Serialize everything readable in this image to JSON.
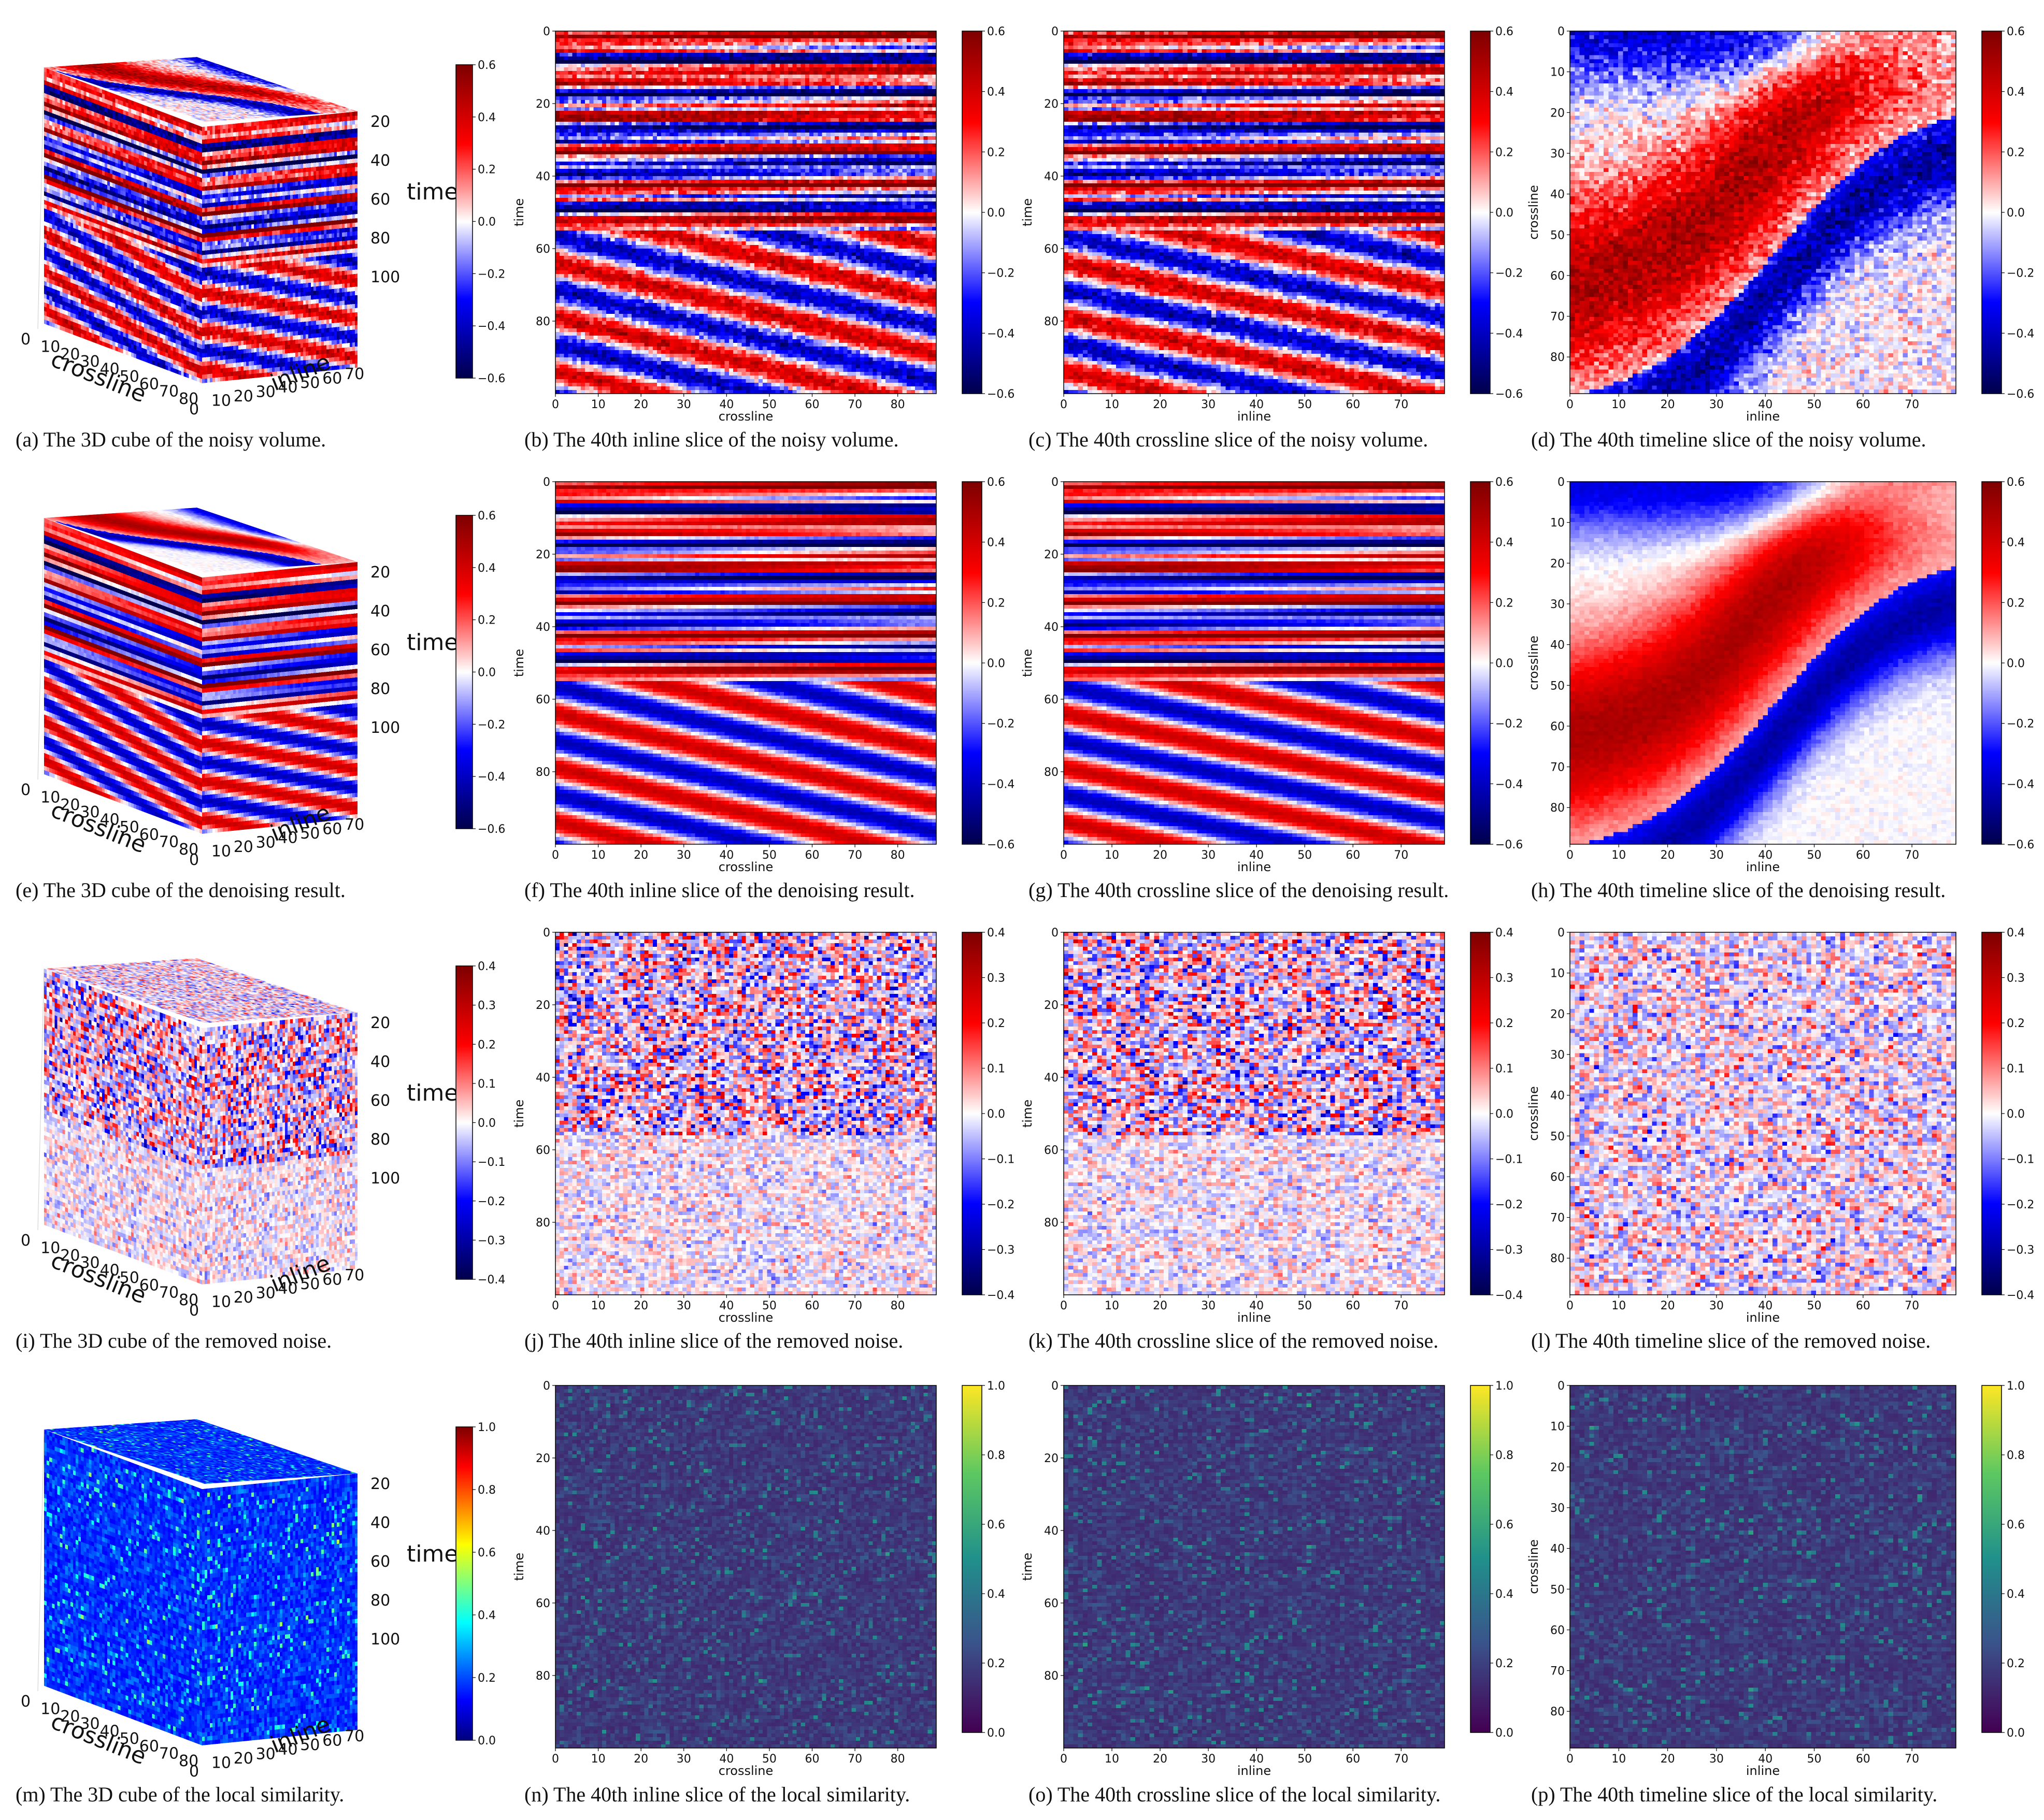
{
  "chart_data": [
    {
      "type": "heatmap",
      "panel": "a",
      "kind": "cube",
      "caption": "(a) The 3D cube of the noisy volume.",
      "field": "noisy",
      "cmap": "seismic",
      "clim": [
        -0.6,
        0.6
      ],
      "cbar_ticks": [
        "0.6",
        "0.4",
        "0.2",
        "0.0",
        "−0.2",
        "−0.4",
        "−0.6"
      ],
      "axes": {
        "crossline": {
          "label": "crossline",
          "ticks": [
            "0",
            "10",
            "20",
            "30",
            "40",
            "50",
            "60",
            "70",
            "80"
          ]
        },
        "inline": {
          "label": "inline",
          "ticks": [
            "0",
            "10",
            "20",
            "30",
            "40",
            "50",
            "60",
            "70"
          ]
        },
        "time": {
          "label": "time",
          "ticks": [
            "20",
            "40",
            "60",
            "80",
            "100"
          ]
        }
      }
    },
    {
      "type": "heatmap",
      "panel": "b",
      "kind": "slice",
      "caption": "(b) The 40th inline slice of the noisy volume.",
      "field": "noisy",
      "view": "inline",
      "cmap": "seismic",
      "clim": [
        -0.6,
        0.6
      ],
      "cbar_ticks": [
        "0.6",
        "0.4",
        "0.2",
        "0.0",
        "−0.2",
        "−0.4",
        "−0.6"
      ],
      "xlabel": "crossline",
      "ylabel": "time",
      "xticks": [
        "0",
        "10",
        "20",
        "30",
        "40",
        "50",
        "60",
        "70",
        "80"
      ],
      "yticks": [
        "0",
        "20",
        "40",
        "60",
        "80"
      ],
      "xlim": [
        0,
        89
      ],
      "ylim": [
        0,
        100
      ]
    },
    {
      "type": "heatmap",
      "panel": "c",
      "kind": "slice",
      "caption": "(c) The 40th crossline slice of the noisy volume.",
      "field": "noisy",
      "view": "crossline",
      "cmap": "seismic",
      "clim": [
        -0.6,
        0.6
      ],
      "cbar_ticks": [
        "0.6",
        "0.4",
        "0.2",
        "0.0",
        "−0.2",
        "−0.4",
        "−0.6"
      ],
      "xlabel": "inline",
      "ylabel": "time",
      "xticks": [
        "0",
        "10",
        "20",
        "30",
        "40",
        "50",
        "60",
        "70"
      ],
      "yticks": [
        "0",
        "20",
        "40",
        "60",
        "80"
      ],
      "xlim": [
        0,
        79
      ],
      "ylim": [
        0,
        100
      ]
    },
    {
      "type": "heatmap",
      "panel": "d",
      "kind": "slice",
      "caption": "(d) The 40th timeline slice of the noisy volume.",
      "field": "noisy",
      "view": "timeline",
      "cmap": "seismic",
      "clim": [
        -0.6,
        0.6
      ],
      "cbar_ticks": [
        "0.6",
        "0.4",
        "0.2",
        "0.0",
        "−0.2",
        "−0.4",
        "−0.6"
      ],
      "xlabel": "inline",
      "ylabel": "crossline",
      "xticks": [
        "0",
        "10",
        "20",
        "30",
        "40",
        "50",
        "60",
        "70"
      ],
      "yticks": [
        "0",
        "10",
        "20",
        "30",
        "40",
        "50",
        "60",
        "70",
        "80"
      ],
      "xlim": [
        0,
        79
      ],
      "ylim": [
        0,
        89
      ]
    },
    {
      "type": "heatmap",
      "panel": "e",
      "kind": "cube",
      "caption": "(e) The 3D cube of the denoising result.",
      "field": "denoised",
      "cmap": "seismic",
      "clim": [
        -0.6,
        0.6
      ],
      "cbar_ticks": [
        "0.6",
        "0.4",
        "0.2",
        "0.0",
        "−0.2",
        "−0.4",
        "−0.6"
      ],
      "axes": {
        "crossline": {
          "label": "crossline",
          "ticks": [
            "0",
            "10",
            "20",
            "30",
            "40",
            "50",
            "60",
            "70",
            "80"
          ]
        },
        "inline": {
          "label": "inline",
          "ticks": [
            "0",
            "10",
            "20",
            "30",
            "40",
            "50",
            "60",
            "70"
          ]
        },
        "time": {
          "label": "time",
          "ticks": [
            "20",
            "40",
            "60",
            "80",
            "100"
          ]
        }
      }
    },
    {
      "type": "heatmap",
      "panel": "f",
      "kind": "slice",
      "caption": "(f) The 40th inline slice of the denoising result.",
      "field": "denoised",
      "view": "inline",
      "cmap": "seismic",
      "clim": [
        -0.6,
        0.6
      ],
      "cbar_ticks": [
        "0.6",
        "0.4",
        "0.2",
        "0.0",
        "−0.2",
        "−0.4",
        "−0.6"
      ],
      "xlabel": "crossline",
      "ylabel": "time",
      "xticks": [
        "0",
        "10",
        "20",
        "30",
        "40",
        "50",
        "60",
        "70",
        "80"
      ],
      "yticks": [
        "0",
        "20",
        "40",
        "60",
        "80"
      ],
      "xlim": [
        0,
        89
      ],
      "ylim": [
        0,
        100
      ]
    },
    {
      "type": "heatmap",
      "panel": "g",
      "kind": "slice",
      "caption": "(g) The 40th crossline slice of the denoising result.",
      "field": "denoised",
      "view": "crossline",
      "cmap": "seismic",
      "clim": [
        -0.6,
        0.6
      ],
      "cbar_ticks": [
        "0.6",
        "0.4",
        "0.2",
        "0.0",
        "−0.2",
        "−0.4",
        "−0.6"
      ],
      "xlabel": "inline",
      "ylabel": "time",
      "xticks": [
        "0",
        "10",
        "20",
        "30",
        "40",
        "50",
        "60",
        "70"
      ],
      "yticks": [
        "0",
        "20",
        "40",
        "60",
        "80"
      ],
      "xlim": [
        0,
        79
      ],
      "ylim": [
        0,
        100
      ]
    },
    {
      "type": "heatmap",
      "panel": "h",
      "kind": "slice",
      "caption": "(h) The 40th timeline slice of the denoising result.",
      "field": "denoised",
      "view": "timeline",
      "cmap": "seismic",
      "clim": [
        -0.6,
        0.6
      ],
      "cbar_ticks": [
        "0.6",
        "0.4",
        "0.2",
        "0.0",
        "−0.2",
        "−0.4",
        "−0.6"
      ],
      "xlabel": "inline",
      "ylabel": "crossline",
      "xticks": [
        "0",
        "10",
        "20",
        "30",
        "40",
        "50",
        "60",
        "70"
      ],
      "yticks": [
        "0",
        "10",
        "20",
        "30",
        "40",
        "50",
        "60",
        "70",
        "80"
      ],
      "xlim": [
        0,
        79
      ],
      "ylim": [
        0,
        89
      ]
    },
    {
      "type": "heatmap",
      "panel": "i",
      "kind": "cube",
      "caption": "(i) The 3D cube of the removed noise.",
      "field": "noise",
      "cmap": "seismic",
      "clim": [
        -0.4,
        0.4
      ],
      "cbar_ticks": [
        "0.4",
        "0.3",
        "0.2",
        "0.1",
        "0.0",
        "−0.1",
        "−0.2",
        "−0.3",
        "−0.4"
      ],
      "axes": {
        "crossline": {
          "label": "crossline",
          "ticks": [
            "0",
            "10",
            "20",
            "30",
            "40",
            "50",
            "60",
            "70",
            "80"
          ]
        },
        "inline": {
          "label": "inline",
          "ticks": [
            "0",
            "10",
            "20",
            "30",
            "40",
            "50",
            "60",
            "70"
          ]
        },
        "time": {
          "label": "time",
          "ticks": [
            "20",
            "40",
            "60",
            "80",
            "100"
          ]
        }
      }
    },
    {
      "type": "heatmap",
      "panel": "j",
      "kind": "slice",
      "caption": "(j) The 40th inline slice of the removed noise.",
      "field": "noise",
      "view": "inline",
      "cmap": "seismic",
      "clim": [
        -0.4,
        0.4
      ],
      "cbar_ticks": [
        "0.4",
        "0.3",
        "0.2",
        "0.1",
        "0.0",
        "−0.1",
        "−0.2",
        "−0.3",
        "−0.4"
      ],
      "xlabel": "crossline",
      "ylabel": "time",
      "xticks": [
        "0",
        "10",
        "20",
        "30",
        "40",
        "50",
        "60",
        "70",
        "80"
      ],
      "yticks": [
        "0",
        "20",
        "40",
        "60",
        "80"
      ],
      "xlim": [
        0,
        89
      ],
      "ylim": [
        0,
        100
      ]
    },
    {
      "type": "heatmap",
      "panel": "k",
      "kind": "slice",
      "caption": "(k) The 40th crossline slice of the removed noise.",
      "field": "noise",
      "view": "crossline",
      "cmap": "seismic",
      "clim": [
        -0.4,
        0.4
      ],
      "cbar_ticks": [
        "0.4",
        "0.3",
        "0.2",
        "0.1",
        "0.0",
        "−0.1",
        "−0.2",
        "−0.3",
        "−0.4"
      ],
      "xlabel": "inline",
      "ylabel": "time",
      "xticks": [
        "0",
        "10",
        "20",
        "30",
        "40",
        "50",
        "60",
        "70"
      ],
      "yticks": [
        "0",
        "20",
        "40",
        "60",
        "80"
      ],
      "xlim": [
        0,
        79
      ],
      "ylim": [
        0,
        100
      ]
    },
    {
      "type": "heatmap",
      "panel": "l",
      "kind": "slice",
      "caption": "(l) The 40th timeline slice of the removed noise.",
      "field": "noise",
      "view": "timeline",
      "cmap": "seismic",
      "clim": [
        -0.4,
        0.4
      ],
      "cbar_ticks": [
        "0.4",
        "0.3",
        "0.2",
        "0.1",
        "0.0",
        "−0.1",
        "−0.2",
        "−0.3",
        "−0.4"
      ],
      "xlabel": "inline",
      "ylabel": "crossline",
      "xticks": [
        "0",
        "10",
        "20",
        "30",
        "40",
        "50",
        "60",
        "70"
      ],
      "yticks": [
        "0",
        "10",
        "20",
        "30",
        "40",
        "50",
        "60",
        "70",
        "80"
      ],
      "xlim": [
        0,
        79
      ],
      "ylim": [
        0,
        89
      ]
    },
    {
      "type": "heatmap",
      "panel": "m",
      "kind": "cube",
      "caption": "(m) The 3D cube of the local similarity.",
      "field": "similarity",
      "cmap": "jet",
      "clim": [
        0,
        1
      ],
      "cbar_ticks": [
        "1.0",
        "0.8",
        "0.6",
        "0.4",
        "0.2",
        "0.0"
      ],
      "axes": {
        "crossline": {
          "label": "crossline",
          "ticks": [
            "0",
            "10",
            "20",
            "30",
            "40",
            "50",
            "60",
            "70",
            "80"
          ]
        },
        "inline": {
          "label": "inline",
          "ticks": [
            "0",
            "10",
            "20",
            "30",
            "40",
            "50",
            "60",
            "70"
          ]
        },
        "time": {
          "label": "time",
          "ticks": [
            "20",
            "40",
            "60",
            "80",
            "100"
          ]
        }
      }
    },
    {
      "type": "heatmap",
      "panel": "n",
      "kind": "slice",
      "caption": "(n) The 40th inline slice of the local similarity.",
      "field": "similarity",
      "view": "inline",
      "cmap": "viridis",
      "clim": [
        0,
        1
      ],
      "cbar_ticks": [
        "1.0",
        "0.8",
        "0.6",
        "0.4",
        "0.2",
        "0.0"
      ],
      "xlabel": "crossline",
      "ylabel": "time",
      "xticks": [
        "0",
        "10",
        "20",
        "30",
        "40",
        "50",
        "60",
        "70",
        "80"
      ],
      "yticks": [
        "0",
        "20",
        "40",
        "60",
        "80"
      ],
      "xlim": [
        0,
        89
      ],
      "ylim": [
        0,
        100
      ]
    },
    {
      "type": "heatmap",
      "panel": "o",
      "kind": "slice",
      "caption": "(o) The 40th crossline slice of the local similarity.",
      "field": "similarity",
      "view": "crossline",
      "cmap": "viridis",
      "clim": [
        0,
        1
      ],
      "cbar_ticks": [
        "1.0",
        "0.8",
        "0.6",
        "0.4",
        "0.2",
        "0.0"
      ],
      "xlabel": "inline",
      "ylabel": "time",
      "xticks": [
        "0",
        "10",
        "20",
        "30",
        "40",
        "50",
        "60",
        "70"
      ],
      "yticks": [
        "0",
        "20",
        "40",
        "60",
        "80"
      ],
      "xlim": [
        0,
        79
      ],
      "ylim": [
        0,
        100
      ]
    },
    {
      "type": "heatmap",
      "panel": "p",
      "kind": "slice",
      "caption": "(p) The 40th timeline slice of the local similarity.",
      "field": "similarity",
      "view": "timeline",
      "cmap": "viridis",
      "clim": [
        0,
        1
      ],
      "cbar_ticks": [
        "1.0",
        "0.8",
        "0.6",
        "0.4",
        "0.2",
        "0.0"
      ],
      "xlabel": "inline",
      "ylabel": "crossline",
      "xticks": [
        "0",
        "10",
        "20",
        "30",
        "40",
        "50",
        "60",
        "70"
      ],
      "yticks": [
        "0",
        "10",
        "20",
        "30",
        "40",
        "50",
        "60",
        "70",
        "80"
      ],
      "xlim": [
        0,
        79
      ],
      "ylim": [
        0,
        89
      ]
    }
  ]
}
